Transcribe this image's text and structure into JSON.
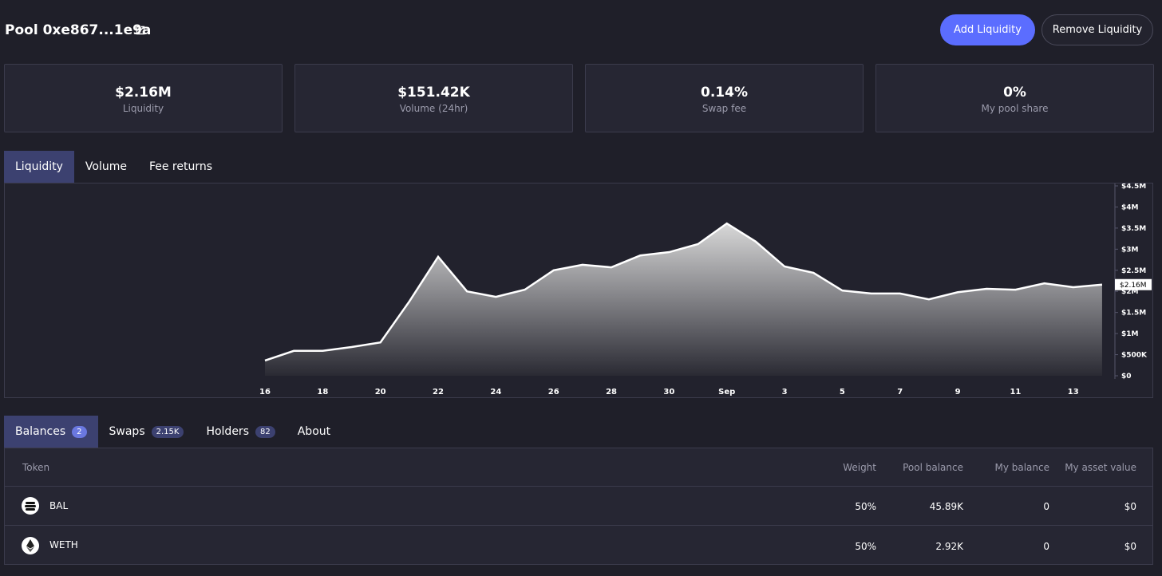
{
  "header": {
    "title": "Pool 0xe867...1e9a",
    "actions": [
      "Add Liquidity",
      "Remove Liquidity"
    ]
  },
  "stats": [
    {
      "value": "$2.16M",
      "label": "Liquidity"
    },
    {
      "value": "$151.42K",
      "label": "Volume (24hr)"
    },
    {
      "value": "0.14%",
      "label": "Swap fee"
    },
    {
      "value": "0%",
      "label": "My pool share"
    }
  ],
  "chart_tabs": [
    "Liquidity",
    "Volume",
    "Fee returns"
  ],
  "chart_data": {
    "type": "area",
    "color": "#ffffff",
    "categories": [
      "16",
      null,
      "18",
      null,
      "20",
      null,
      "22",
      null,
      "24",
      null,
      "26",
      null,
      "28",
      null,
      "30",
      null,
      "Sep",
      null,
      "3",
      null,
      "5",
      null,
      "7",
      null,
      "9",
      null,
      "11",
      null,
      "13",
      null
    ],
    "values": [
      360000,
      590000,
      590000,
      680000,
      790000,
      1760000,
      2820000,
      2000000,
      1870000,
      2040000,
      2500000,
      2630000,
      2570000,
      2850000,
      2930000,
      3120000,
      3610000,
      3180000,
      2590000,
      2440000,
      2020000,
      1950000,
      1950000,
      1810000,
      1980000,
      2060000,
      2040000,
      2190000,
      2100000,
      2160000
    ],
    "value_labels": [
      null,
      null,
      null,
      null,
      null,
      null,
      null,
      null,
      null,
      null,
      null,
      null,
      null,
      null,
      null,
      null,
      null,
      null,
      null,
      null,
      null,
      null,
      null,
      null,
      null,
      null,
      null,
      null,
      null,
      "$2.16M"
    ],
    "ylim": [
      0,
      4500000
    ],
    "yticks": [
      {
        "value": 0,
        "label": "$0"
      },
      {
        "value": 500000,
        "label": "$500K"
      },
      {
        "value": 1000000,
        "label": "$1M"
      },
      {
        "value": 1500000,
        "label": "$1.5M"
      },
      {
        "value": 2000000,
        "label": "$2M"
      },
      {
        "value": 2500000,
        "label": "$2.5M"
      },
      {
        "value": 3000000,
        "label": "$3M"
      },
      {
        "value": 3500000,
        "label": "$3.5M"
      },
      {
        "value": 4000000,
        "label": "$4M"
      },
      {
        "value": 4500000,
        "label": "$4.5M"
      }
    ]
  },
  "table_tabs": [
    {
      "label": "Balances",
      "badge": "2"
    },
    {
      "label": "Swaps",
      "badge": "2.15K"
    },
    {
      "label": "Holders",
      "badge": "82"
    },
    {
      "label": "About"
    }
  ],
  "table": {
    "columns": [
      "Token",
      "Weight",
      "Pool balance",
      "My balance",
      "My asset value"
    ],
    "rows": [
      [
        "BAL",
        "50%",
        "45.89K",
        "0",
        "$0"
      ],
      [
        "WETH",
        "50%",
        "2.92K",
        "0",
        "$0"
      ]
    ]
  }
}
